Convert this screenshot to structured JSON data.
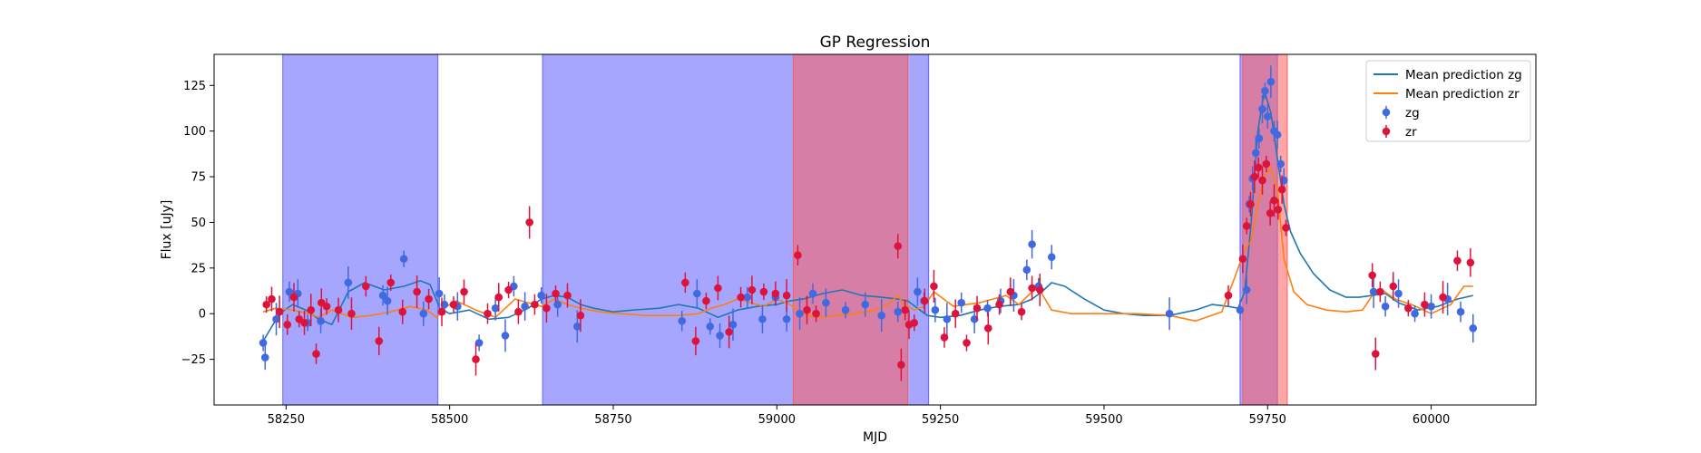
{
  "chart_data": {
    "type": "scatter",
    "title": "GP Regression",
    "xlabel": "MJD",
    "ylabel": "Flux [uJy]",
    "xlim": [
      58140,
      60160
    ],
    "ylim": [
      -50,
      142
    ],
    "xticks": [
      58250,
      58500,
      58750,
      59000,
      59250,
      59500,
      59750,
      60000
    ],
    "yticks": [
      -25,
      0,
      25,
      50,
      75,
      100,
      125
    ],
    "grid": false,
    "legend_position": "top-right",
    "shaded_regions": [
      {
        "band": "zg",
        "x": [
          58245,
          58482
        ],
        "color": "#6666ff",
        "opacity": 0.58
      },
      {
        "band": "zg",
        "x": [
          58642,
          59232
        ],
        "color": "#6666ff",
        "opacity": 0.58
      },
      {
        "band": "zg",
        "x": [
          59708,
          59765
        ],
        "color": "#6666ff",
        "opacity": 0.58
      },
      {
        "band": "zr",
        "x": [
          59025,
          59200
        ],
        "color": "#ff5c5c",
        "opacity": 0.55
      },
      {
        "band": "zr",
        "x": [
          59712,
          59780
        ],
        "color": "#ff5c5c",
        "opacity": 0.55
      }
    ],
    "series": [
      {
        "name": "Mean prediction zg",
        "kind": "line",
        "color": "#1f77b4",
        "x": [
          58215,
          58240,
          58260,
          58280,
          58300,
          58320,
          58345,
          58370,
          58400,
          58430,
          58455,
          58470,
          58485,
          58500,
          58530,
          58560,
          58590,
          58620,
          58640,
          58660,
          58680,
          58700,
          58720,
          58750,
          58780,
          58820,
          58850,
          58880,
          58910,
          58940,
          58970,
          59000,
          59020,
          59040,
          59070,
          59100,
          59130,
          59160,
          59185,
          59200,
          59215,
          59230,
          59250,
          59280,
          59310,
          59340,
          59370,
          59390,
          59405,
          59420,
          59440,
          59470,
          59500,
          59530,
          59560,
          59600,
          59640,
          59665,
          59690,
          59705,
          59715,
          59725,
          59735,
          59745,
          59755,
          59765,
          59775,
          59785,
          59800,
          59820,
          59845,
          59870,
          59890,
          59910,
          59930,
          59950,
          59980,
          60010,
          60040,
          60064
        ],
        "y": [
          -15,
          0,
          5,
          2,
          -3,
          -6,
          12,
          17,
          13,
          15,
          18,
          16,
          3,
          0,
          2,
          -3,
          -2,
          3,
          8,
          10,
          9,
          5,
          3,
          1,
          2,
          3,
          5,
          3,
          -2,
          2,
          4,
          5,
          7,
          8,
          11,
          13,
          10,
          9,
          8,
          7,
          3,
          -1,
          -2,
          -1,
          2,
          4,
          5,
          8,
          12,
          17,
          15,
          8,
          2,
          0,
          -1,
          -1,
          2,
          5,
          4,
          3,
          12,
          50,
          100,
          122,
          110,
          85,
          60,
          45,
          33,
          22,
          13,
          9,
          9,
          10,
          11,
          6,
          2,
          4,
          8,
          10
        ]
      },
      {
        "name": "Mean prediction zr",
        "kind": "line",
        "color": "#ff7f0e",
        "x": [
          58215,
          58235,
          58260,
          58285,
          58300,
          58320,
          58350,
          58380,
          58410,
          58440,
          58465,
          58480,
          58495,
          58510,
          58540,
          58570,
          58600,
          58620,
          58640,
          58660,
          58680,
          58700,
          58730,
          58760,
          58800,
          58850,
          58880,
          58900,
          58920,
          58940,
          58960,
          58980,
          59000,
          59020,
          59040,
          59060,
          59090,
          59120,
          59150,
          59170,
          59185,
          59195,
          59210,
          59225,
          59240,
          59255,
          59270,
          59290,
          59310,
          59330,
          59350,
          59370,
          59390,
          59400,
          59420,
          59450,
          59500,
          59550,
          59600,
          59640,
          59680,
          59700,
          59715,
          59725,
          59735,
          59745,
          59755,
          59765,
          59775,
          59790,
          59810,
          59840,
          59870,
          59895,
          59910,
          59925,
          59945,
          59970,
          60000,
          60030,
          60050,
          60064
        ],
        "y": [
          1,
          3,
          2,
          0,
          -2,
          2,
          -2,
          -1,
          1,
          4,
          2,
          -2,
          4,
          7,
          2,
          -2,
          8,
          6,
          4,
          8,
          5,
          3,
          1,
          0,
          -1,
          -1,
          0,
          3,
          5,
          8,
          6,
          4,
          8,
          5,
          0,
          -2,
          -1,
          0,
          2,
          5,
          10,
          5,
          2,
          4,
          12,
          8,
          4,
          5,
          6,
          8,
          10,
          5,
          12,
          14,
          2,
          0,
          0,
          0,
          -1,
          -4,
          1,
          20,
          35,
          40,
          60,
          75,
          80,
          68,
          30,
          12,
          5,
          2,
          1,
          2,
          10,
          13,
          8,
          5,
          0,
          5,
          15,
          15
        ]
      },
      {
        "name": "zg",
        "kind": "errorbar",
        "color": "#4169e1",
        "x": [
          58215,
          58218,
          58235,
          58255,
          58268,
          58283,
          58303,
          58345,
          58398,
          58405,
          58430,
          58460,
          58484,
          58492,
          58512,
          58545,
          58570,
          58585,
          58598,
          58615,
          58640,
          58665,
          58695,
          58855,
          58878,
          58898,
          58913,
          58933,
          58955,
          58978,
          58998,
          59015,
          59035,
          59055,
          59075,
          59105,
          59135,
          59160,
          59185,
          59215,
          59225,
          59242,
          59260,
          59282,
          59302,
          59322,
          59342,
          59362,
          59382,
          59390,
          59400,
          59420,
          59600,
          59708,
          59718,
          59722,
          59727,
          59732,
          59737,
          59742,
          59746,
          59750,
          59755,
          59760,
          59765,
          59770,
          59775,
          59912,
          59930,
          59950,
          59975,
          60000,
          60025,
          60045,
          60064
        ],
        "y": [
          -16,
          -24,
          -3,
          12,
          11,
          -5,
          -4,
          17,
          10,
          7,
          30,
          0,
          11,
          5,
          4,
          -16,
          3,
          -12,
          15,
          4,
          10,
          5,
          -7,
          -4,
          11,
          -7,
          -12,
          -6,
          9,
          -3,
          9,
          -3,
          0,
          11,
          6,
          2,
          5,
          -1,
          1,
          12,
          7,
          2,
          -3,
          6,
          -3,
          3,
          7,
          10,
          24,
          38,
          15,
          31,
          0,
          2,
          13,
          60,
          74,
          88,
          96,
          112,
          122,
          108,
          127,
          100,
          98,
          82,
          73,
          12,
          4,
          11,
          0,
          4,
          8,
          1,
          -8
        ]
      },
      {
        "name": "zr",
        "kind": "errorbar",
        "color": "#dc143c",
        "x": [
          58220,
          58228,
          58240,
          58252,
          58262,
          58270,
          58278,
          58288,
          58296,
          58304,
          58312,
          58330,
          58350,
          58372,
          58392,
          58410,
          58428,
          58450,
          58468,
          58488,
          58506,
          58522,
          58540,
          58558,
          58575,
          58590,
          58605,
          58622,
          58630,
          58648,
          58662,
          58680,
          58700,
          58860,
          58876,
          58892,
          58910,
          58927,
          58945,
          58962,
          58980,
          58998,
          59015,
          59032,
          59046,
          59060,
          59185,
          59190,
          59196,
          59202,
          59210,
          59226,
          59240,
          59256,
          59273,
          59290,
          59306,
          59323,
          59340,
          59357,
          59374,
          59390,
          59402,
          59690,
          59712,
          59718,
          59724,
          59730,
          59736,
          59742,
          59748,
          59754,
          59760,
          59766,
          59772,
          59778,
          59910,
          59915,
          59922,
          59942,
          59965,
          59990,
          60018,
          60040,
          60060
        ],
        "y": [
          5,
          8,
          1,
          -6,
          9,
          -3,
          -5,
          2,
          -22,
          6,
          4,
          2,
          0,
          15,
          -15,
          17,
          1,
          12,
          8,
          1,
          5,
          12,
          -25,
          0,
          9,
          13,
          1,
          50,
          5,
          3,
          11,
          10,
          -1,
          17,
          -15,
          7,
          14,
          -10,
          9,
          13,
          12,
          11,
          10,
          32,
          2,
          0,
          37,
          -28,
          2,
          -6,
          -5,
          7,
          15,
          -13,
          0,
          -16,
          3,
          -8,
          5,
          12,
          1,
          14,
          13,
          10,
          30,
          48,
          60,
          75,
          80,
          73,
          82,
          55,
          62,
          57,
          68,
          47,
          21,
          -22,
          12,
          15,
          3,
          5,
          9,
          29,
          28
        ]
      }
    ]
  }
}
